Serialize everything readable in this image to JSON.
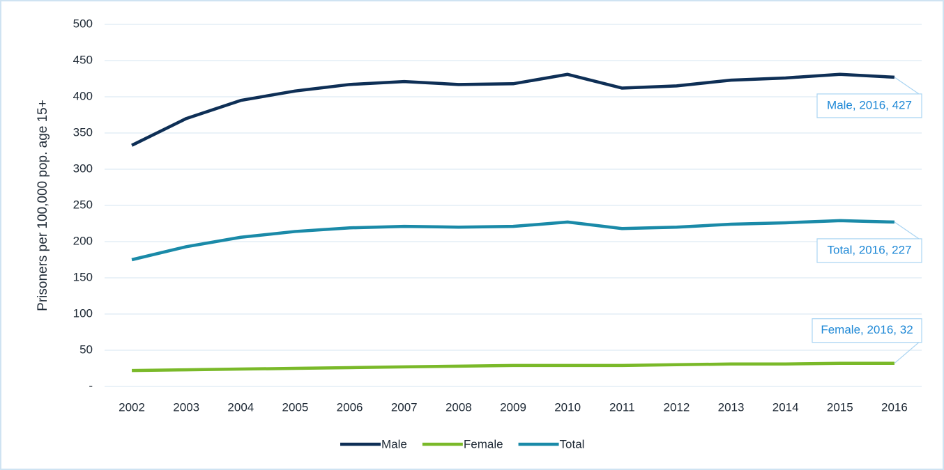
{
  "chart_data": {
    "type": "line",
    "y_label": "Prisoners per 100,000 pop. age 15+",
    "x": [
      2002,
      2003,
      2004,
      2005,
      2006,
      2007,
      2008,
      2009,
      2010,
      2011,
      2012,
      2013,
      2014,
      2015,
      2016
    ],
    "series": [
      {
        "name": "Male",
        "color": "#0e2f56",
        "values": [
          333,
          370,
          395,
          408,
          417,
          421,
          417,
          418,
          431,
          412,
          415,
          423,
          426,
          431,
          427
        ],
        "value_labels": [
          null,
          null,
          null,
          null,
          null,
          null,
          null,
          null,
          null,
          null,
          null,
          null,
          null,
          null,
          "Male, 2016,  427"
        ]
      },
      {
        "name": "Female",
        "color": "#7ab929",
        "values": [
          22,
          23,
          24,
          25,
          26,
          27,
          28,
          29,
          29,
          29,
          30,
          31,
          31,
          32,
          32
        ],
        "value_labels": [
          null,
          null,
          null,
          null,
          null,
          null,
          null,
          null,
          null,
          null,
          null,
          null,
          null,
          null,
          "Female, 2016,  32"
        ]
      },
      {
        "name": "Total",
        "color": "#1a8aa8",
        "values": [
          175,
          193,
          206,
          214,
          219,
          221,
          220,
          221,
          227,
          218,
          220,
          224,
          226,
          229,
          227
        ],
        "value_labels": [
          null,
          null,
          null,
          null,
          null,
          null,
          null,
          null,
          null,
          null,
          null,
          null,
          null,
          null,
          "Total, 2016,  227"
        ]
      }
    ],
    "ylim": [
      0,
      500
    ],
    "yticks": [
      {
        "value": 0,
        "label": "-"
      },
      50,
      100,
      150,
      200,
      250,
      300,
      350,
      400,
      450,
      500
    ],
    "grid": true,
    "legend": "bottom"
  }
}
